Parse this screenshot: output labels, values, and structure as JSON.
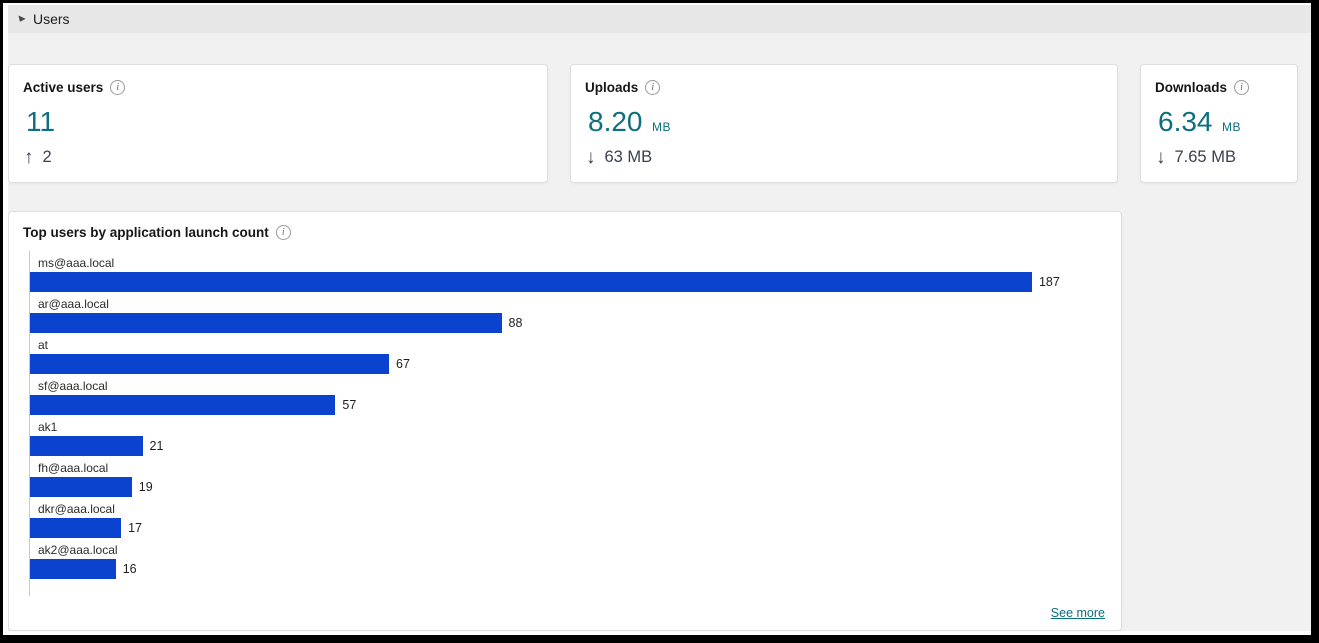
{
  "section": {
    "title": "Users"
  },
  "stat_cards": [
    {
      "title": "Active users",
      "info_icon": "i",
      "value": "11",
      "unit": "",
      "delta_arrow": "↑",
      "delta_value": "2"
    },
    {
      "title": "Uploads",
      "info_icon": "i",
      "value": "8.20",
      "unit": "MB",
      "delta_arrow": "↓",
      "delta_value": "63 MB"
    },
    {
      "title": "Downloads",
      "info_icon": "i",
      "value": "6.34",
      "unit": "MB",
      "delta_arrow": "↓",
      "delta_value": "7.65 MB"
    }
  ],
  "chart_card": {
    "title": "Top users by application launch count",
    "info_icon": "i",
    "see_more_label": "See more"
  },
  "chart_data": {
    "type": "bar",
    "orientation": "horizontal",
    "title": "Top users by application launch count",
    "categories": [
      "ms@aaa.local",
      "ar@aaa.local",
      "at",
      "sf@aaa.local",
      "ak1",
      "fh@aaa.local",
      "dkr@aaa.local",
      "ak2@aaa.local"
    ],
    "values": [
      187,
      88,
      67,
      57,
      21,
      19,
      17,
      16
    ],
    "xlim": [
      0,
      201
    ],
    "value_labels": true,
    "grid": false,
    "legend": false,
    "bar_color": "#0c43ce"
  },
  "colors": {
    "accent_teal": "#0e6f80",
    "bar_blue": "#0c43ce",
    "delta_text": "#39414e",
    "link_teal": "#0b6e7e",
    "header_bar_bg": "#e7e7e7",
    "content_bg": "#f1f1f1"
  }
}
